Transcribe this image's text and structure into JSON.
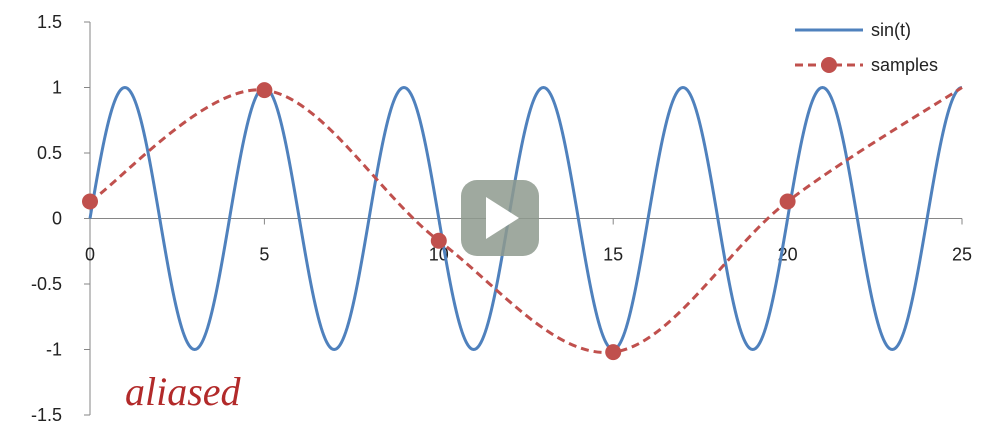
{
  "chart_data": {
    "type": "line",
    "title": "",
    "xlabel": "",
    "ylabel": "",
    "xlim": [
      0,
      25
    ],
    "ylim": [
      -1.5,
      1.5
    ],
    "x_ticks": [
      "0",
      "5",
      "10",
      "15",
      "20",
      "25"
    ],
    "y_ticks": [
      "1.5",
      "1",
      "0.5",
      "0",
      "-0.5",
      "-1",
      "-1.5"
    ],
    "grid": false,
    "legend_position": "top-right",
    "series": [
      {
        "name": "sin(t)",
        "style": "solid",
        "color": "#4f81bd",
        "function": "sin",
        "period": 4,
        "x_range": [
          0,
          25
        ]
      },
      {
        "name": "samples",
        "style": "dashed with markers",
        "color": "#c0504d",
        "x": [
          0,
          5,
          10,
          15,
          20
        ],
        "y": [
          0.13,
          0.98,
          -0.17,
          -1.02,
          0.13
        ],
        "curve_end": [
          25,
          1
        ]
      }
    ],
    "annotation": {
      "text": "aliased",
      "color": "#b22a2a"
    }
  },
  "overlay": {
    "play_icon": "play-icon",
    "color": "#8e9a8e"
  }
}
